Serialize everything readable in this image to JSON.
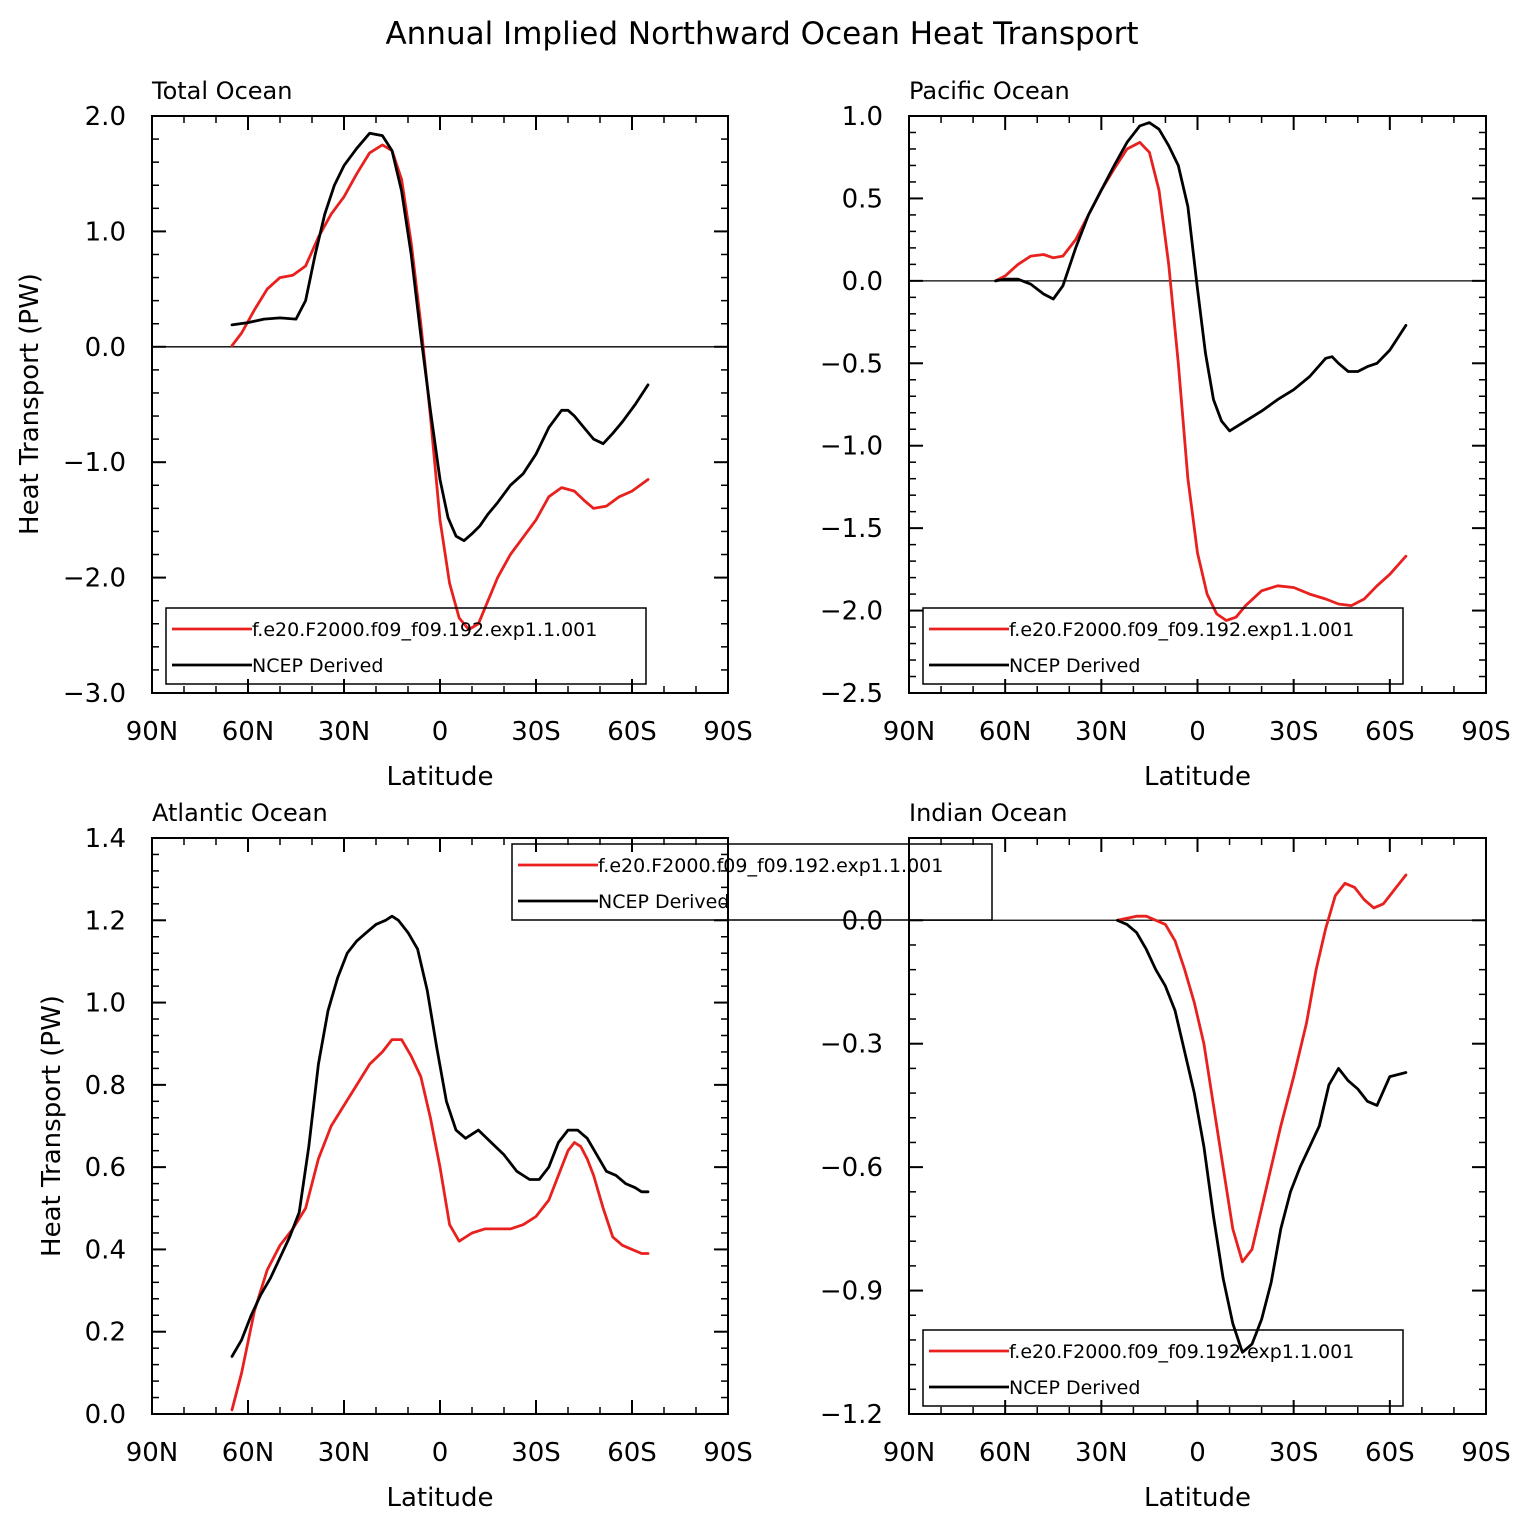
{
  "title": "Annual Implied Northward Ocean Heat Transport",
  "colors": {
    "model": "#e8201e",
    "obs": "#000000",
    "axis": "#000000",
    "background": "#ffffff"
  },
  "chart_data": [
    {
      "type": "line",
      "title": "Total Ocean",
      "xlabel": "Latitude",
      "ylabel": "Heat Transport (PW)",
      "xlim": [
        90,
        -90
      ],
      "ylim": [
        -3.0,
        2.0
      ],
      "x_ticks": [
        90,
        60,
        30,
        0,
        -30,
        -60,
        -90
      ],
      "x_tick_labels": [
        "90N",
        "60N",
        "30N",
        "0",
        "30S",
        "60S",
        "90S"
      ],
      "y_ticks": [
        2.0,
        1.0,
        0.0,
        -1.0,
        -2.0,
        -3.0
      ],
      "y_tick_labels": [
        "2.0",
        "1.0",
        "0.0",
        "−1.0",
        "−2.0",
        "−3.0"
      ],
      "zero_line": true,
      "legend_placement": "bottom-left",
      "legend": [
        "f.e20.F2000.f09_f09.192.exp1.1.001",
        "NCEP Derived"
      ],
      "series": [
        {
          "name": "f.e20.F2000.f09_f09.192.exp1.1.001",
          "color": "#e8201e",
          "x": [
            65,
            62,
            58,
            54,
            50,
            46,
            42,
            38,
            34,
            30,
            26,
            22,
            18,
            15,
            12,
            9,
            6,
            3,
            0,
            -3,
            -6,
            -9,
            -12,
            -15,
            -18,
            -22,
            -26,
            -30,
            -34,
            -38,
            -42,
            -45,
            -48,
            -52,
            -56,
            -60,
            -65
          ],
          "y": [
            0.01,
            0.12,
            0.32,
            0.5,
            0.6,
            0.62,
            0.7,
            0.95,
            1.15,
            1.3,
            1.5,
            1.68,
            1.75,
            1.7,
            1.45,
            0.9,
            0.2,
            -0.6,
            -1.5,
            -2.05,
            -2.35,
            -2.45,
            -2.4,
            -2.2,
            -2.0,
            -1.8,
            -1.65,
            -1.5,
            -1.3,
            -1.22,
            -1.25,
            -1.33,
            -1.4,
            -1.38,
            -1.3,
            -1.25,
            -1.15
          ]
        },
        {
          "name": "NCEP Derived",
          "color": "#000000",
          "x": [
            65,
            60,
            55,
            50,
            45,
            42,
            39,
            36,
            33,
            30,
            26,
            22,
            18,
            15,
            12,
            9,
            6,
            3,
            0,
            -2.5,
            -5,
            -7.5,
            -10,
            -12.5,
            -15,
            -18,
            -22,
            -26,
            -30,
            -34,
            -38,
            -40,
            -42,
            -45,
            -48,
            -51,
            -54,
            -57,
            -61,
            -65
          ],
          "y": [
            0.19,
            0.21,
            0.24,
            0.25,
            0.24,
            0.4,
            0.8,
            1.15,
            1.4,
            1.57,
            1.72,
            1.85,
            1.83,
            1.7,
            1.35,
            0.8,
            0.1,
            -0.55,
            -1.15,
            -1.48,
            -1.64,
            -1.68,
            -1.62,
            -1.55,
            -1.45,
            -1.35,
            -1.2,
            -1.1,
            -0.93,
            -0.7,
            -0.55,
            -0.55,
            -0.6,
            -0.7,
            -0.8,
            -0.84,
            -0.75,
            -0.65,
            -0.5,
            -0.33
          ]
        }
      ]
    },
    {
      "type": "line",
      "title": "Pacific Ocean",
      "xlabel": "Latitude",
      "ylabel": "",
      "xlim": [
        90,
        -90
      ],
      "ylim": [
        -2.5,
        1.0
      ],
      "x_ticks": [
        90,
        60,
        30,
        0,
        -30,
        -60,
        -90
      ],
      "x_tick_labels": [
        "90N",
        "60N",
        "30N",
        "0",
        "30S",
        "60S",
        "90S"
      ],
      "y_ticks": [
        1.0,
        0.5,
        0.0,
        -0.5,
        -1.0,
        -1.5,
        -2.0,
        -2.5
      ],
      "y_tick_labels": [
        "1.0",
        "0.5",
        "0.0",
        "−0.5",
        "−1.0",
        "−1.5",
        "−2.0",
        "−2.5"
      ],
      "zero_line": true,
      "legend_placement": "bottom-left",
      "legend": [
        "f.e20.F2000.f09_f09.192.exp1.1.001",
        "NCEP Derived"
      ],
      "series": [
        {
          "name": "f.e20.F2000.f09_f09.192.exp1.1.001",
          "color": "#e8201e",
          "x": [
            63,
            60,
            56,
            52,
            48,
            45,
            42,
            38,
            34,
            30,
            26,
            22,
            18,
            15,
            12,
            9,
            6,
            3,
            0,
            -3,
            -6,
            -9,
            -12,
            -15,
            -20,
            -25,
            -30,
            -35,
            -40,
            -44,
            -48,
            -52,
            -56,
            -60,
            -65
          ],
          "y": [
            0.0,
            0.03,
            0.1,
            0.15,
            0.16,
            0.14,
            0.15,
            0.25,
            0.4,
            0.55,
            0.68,
            0.8,
            0.84,
            0.78,
            0.55,
            0.1,
            -0.5,
            -1.2,
            -1.65,
            -1.9,
            -2.02,
            -2.06,
            -2.04,
            -1.97,
            -1.88,
            -1.85,
            -1.86,
            -1.9,
            -1.93,
            -1.96,
            -1.97,
            -1.93,
            -1.85,
            -1.78,
            -1.67
          ]
        },
        {
          "name": "NCEP Derived",
          "color": "#000000",
          "x": [
            63,
            60,
            56,
            52,
            48,
            45,
            42,
            38,
            34,
            30,
            26,
            22,
            18,
            15,
            12,
            9,
            6,
            3,
            0,
            -2.5,
            -5,
            -7.5,
            -10,
            -15,
            -20,
            -25,
            -30,
            -35,
            -40,
            -42,
            -44,
            -47,
            -50,
            -53,
            -56,
            -60,
            -65
          ],
          "y": [
            0.0,
            0.01,
            0.01,
            -0.02,
            -0.08,
            -0.11,
            -0.03,
            0.2,
            0.4,
            0.55,
            0.7,
            0.84,
            0.94,
            0.96,
            0.92,
            0.82,
            0.7,
            0.45,
            -0.05,
            -0.44,
            -0.72,
            -0.85,
            -0.91,
            -0.85,
            -0.79,
            -0.72,
            -0.66,
            -0.58,
            -0.47,
            -0.46,
            -0.5,
            -0.55,
            -0.55,
            -0.52,
            -0.5,
            -0.42,
            -0.27
          ]
        }
      ]
    },
    {
      "type": "line",
      "title": "Atlantic Ocean",
      "xlabel": "Latitude",
      "ylabel": "Heat Transport (PW)",
      "xlim": [
        90,
        -90
      ],
      "ylim": [
        0.0,
        1.4
      ],
      "x_ticks": [
        90,
        60,
        30,
        0,
        -30,
        -60,
        -90
      ],
      "x_tick_labels": [
        "90N",
        "60N",
        "30N",
        "0",
        "30S",
        "60S",
        "90S"
      ],
      "y_ticks": [
        1.4,
        1.2,
        1.0,
        0.8,
        0.6,
        0.4,
        0.2,
        0.0
      ],
      "y_tick_labels": [
        "1.4",
        "1.2",
        "1.0",
        "0.8",
        "0.6",
        "0.4",
        "0.2",
        "0.0"
      ],
      "zero_line": false,
      "legend_placement": "top-right",
      "legend": [
        "f.e20.F2000.f09_f09.192.exp1.1.001",
        "NCEP Derived"
      ],
      "series": [
        {
          "name": "f.e20.F2000.f09_f09.192.exp1.1.001",
          "color": "#e8201e",
          "x": [
            65,
            62,
            58,
            54,
            50,
            46,
            42,
            38,
            34,
            30,
            26,
            22,
            18,
            15,
            12,
            9,
            6,
            3,
            0,
            -3,
            -6,
            -10,
            -14,
            -18,
            -22,
            -26,
            -30,
            -34,
            -38,
            -40,
            -42,
            -44,
            -46,
            -48,
            -51,
            -54,
            -57,
            -60,
            -63,
            -65
          ],
          "y": [
            0.01,
            0.1,
            0.25,
            0.35,
            0.41,
            0.45,
            0.5,
            0.62,
            0.7,
            0.75,
            0.8,
            0.85,
            0.88,
            0.91,
            0.91,
            0.87,
            0.82,
            0.72,
            0.6,
            0.46,
            0.42,
            0.44,
            0.45,
            0.45,
            0.45,
            0.46,
            0.48,
            0.52,
            0.6,
            0.64,
            0.66,
            0.65,
            0.62,
            0.58,
            0.5,
            0.43,
            0.41,
            0.4,
            0.39,
            0.39
          ]
        },
        {
          "name": "NCEP Derived",
          "color": "#000000",
          "x": [
            65,
            62,
            59,
            56,
            53,
            50,
            47,
            44,
            41,
            38,
            35,
            32,
            29,
            26,
            23,
            20,
            17,
            15,
            13,
            10,
            7,
            4,
            1,
            -2,
            -5,
            -8,
            -12,
            -16,
            -20,
            -24,
            -28,
            -31,
            -34,
            -37,
            -40,
            -43,
            -46,
            -49,
            -52,
            -55,
            -58,
            -61,
            -63,
            -65
          ],
          "y": [
            0.14,
            0.18,
            0.24,
            0.29,
            0.33,
            0.38,
            0.43,
            0.49,
            0.65,
            0.85,
            0.98,
            1.06,
            1.12,
            1.15,
            1.17,
            1.19,
            1.2,
            1.21,
            1.2,
            1.17,
            1.13,
            1.03,
            0.89,
            0.76,
            0.69,
            0.67,
            0.69,
            0.66,
            0.63,
            0.59,
            0.57,
            0.57,
            0.6,
            0.66,
            0.69,
            0.69,
            0.67,
            0.63,
            0.59,
            0.58,
            0.56,
            0.55,
            0.54,
            0.54
          ]
        }
      ]
    },
    {
      "type": "line",
      "title": "Indian Ocean",
      "xlabel": "Latitude",
      "ylabel": "",
      "xlim": [
        90,
        -90
      ],
      "ylim": [
        -1.2,
        0.2
      ],
      "x_ticks": [
        90,
        60,
        30,
        0,
        -30,
        -60,
        -90
      ],
      "x_tick_labels": [
        "90N",
        "60N",
        "30N",
        "0",
        "30S",
        "60S",
        "90S"
      ],
      "y_ticks": [
        0.0,
        -0.3,
        -0.6,
        -0.9,
        -1.2
      ],
      "y_tick_labels": [
        "0.0",
        "−0.3",
        "−0.6",
        "−0.9",
        "−1.2"
      ],
      "zero_line": true,
      "legend_placement": "bottom-left",
      "legend": [
        "f.e20.F2000.f09_f09.192.exp1.1.001",
        "NCEP Derived"
      ],
      "series": [
        {
          "name": "f.e20.F2000.f09_f09.192.exp1.1.001",
          "color": "#e8201e",
          "x": [
            25,
            22,
            19,
            16,
            13,
            10,
            7,
            4,
            1,
            -2,
            -5,
            -8,
            -11,
            -14,
            -17,
            -20,
            -23,
            -26,
            -30,
            -34,
            -37,
            -40,
            -43,
            -46,
            -49,
            -52,
            -55,
            -58,
            -62,
            -65
          ],
          "y": [
            0.0,
            0.005,
            0.01,
            0.01,
            0.0,
            -0.01,
            -0.05,
            -0.12,
            -0.2,
            -0.3,
            -0.45,
            -0.6,
            -0.75,
            -0.83,
            -0.8,
            -0.7,
            -0.6,
            -0.5,
            -0.38,
            -0.25,
            -0.12,
            -0.02,
            0.06,
            0.09,
            0.08,
            0.05,
            0.03,
            0.04,
            0.08,
            0.11
          ]
        },
        {
          "name": "NCEP Derived",
          "color": "#000000",
          "x": [
            25,
            22,
            19,
            16,
            13,
            10,
            7,
            4,
            1,
            -2,
            -5,
            -8,
            -11,
            -14,
            -17,
            -20,
            -23,
            -26,
            -29,
            -32,
            -35,
            -38,
            -41,
            -44,
            -47,
            -50,
            -53,
            -56,
            -60,
            -65
          ],
          "y": [
            0.0,
            -0.01,
            -0.03,
            -0.07,
            -0.12,
            -0.16,
            -0.22,
            -0.32,
            -0.42,
            -0.55,
            -0.72,
            -0.87,
            -0.98,
            -1.05,
            -1.03,
            -0.97,
            -0.88,
            -0.75,
            -0.66,
            -0.6,
            -0.55,
            -0.5,
            -0.4,
            -0.36,
            -0.39,
            -0.41,
            -0.44,
            -0.45,
            -0.38,
            -0.37
          ]
        }
      ]
    }
  ]
}
